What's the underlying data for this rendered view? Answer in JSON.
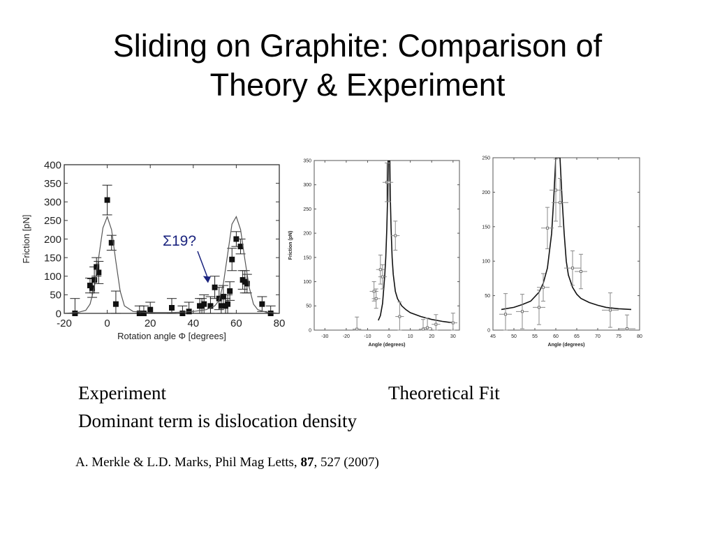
{
  "slide": {
    "title_line1": "Sliding on Graphite: Comparison of",
    "title_line2": "Theory & Experiment",
    "caption_experiment": "Experiment",
    "caption_theory": "Theoretical Fit",
    "caption_dominant": "Dominant term is dislocation density",
    "reference": {
      "authors": "A. Merkle & L.D. Marks, Phil Mag Letts, ",
      "volume": "87",
      "rest": ", 527 (2007)"
    }
  },
  "chart_data": [
    {
      "type": "scatter",
      "title": "",
      "xlabel": "Rotation angle Φ [degrees]",
      "ylabel": "Friction [pN]",
      "xlim": [
        -20,
        80
      ],
      "ylim": [
        0,
        400
      ],
      "xticks": [
        -20,
        0,
        20,
        40,
        60,
        80
      ],
      "yticks": [
        0,
        50,
        100,
        150,
        200,
        250,
        300,
        350,
        400
      ],
      "annotation": "Σ19?",
      "annotation_color": "#1a237e",
      "series": [
        {
          "kind": "points_with_errorbars",
          "x": [
            -15,
            -8,
            -7,
            -6,
            -5,
            -4,
            0,
            2,
            4,
            15,
            17,
            20,
            30,
            35,
            38,
            43,
            44,
            45,
            48,
            50,
            52,
            53,
            54,
            55,
            56,
            57,
            58,
            60,
            62,
            63,
            64,
            65,
            72,
            76
          ],
          "y": [
            0,
            75,
            68,
            90,
            125,
            110,
            305,
            190,
            25,
            0,
            0,
            10,
            15,
            0,
            5,
            20,
            20,
            25,
            20,
            70,
            40,
            20,
            45,
            20,
            25,
            60,
            145,
            200,
            180,
            90,
            85,
            80,
            25,
            0
          ],
          "yerr": [
            40,
            20,
            25,
            35,
            25,
            30,
            40,
            20,
            35,
            20,
            20,
            20,
            25,
            20,
            25,
            20,
            20,
            25,
            25,
            30,
            30,
            20,
            30,
            20,
            25,
            25,
            30,
            20,
            20,
            25,
            30,
            25,
            20,
            20
          ]
        },
        {
          "kind": "fit_curve",
          "x": [
            -20,
            -14,
            -10,
            -8,
            -6,
            -4,
            -2,
            0,
            2,
            4,
            6,
            8,
            12,
            20,
            30,
            40,
            46,
            50,
            52,
            54,
            56,
            58,
            60,
            62,
            64,
            66,
            68,
            70,
            74,
            80
          ],
          "y": [
            0,
            2,
            8,
            25,
            70,
            150,
            230,
            260,
            225,
            140,
            60,
            20,
            5,
            2,
            2,
            5,
            10,
            20,
            35,
            80,
            160,
            240,
            260,
            225,
            145,
            70,
            25,
            10,
            3,
            0
          ]
        }
      ]
    },
    {
      "type": "line",
      "title": "",
      "xlabel": "Angle (degrees)",
      "ylabel": "Friction (pN)",
      "xlim": [
        -35,
        33
      ],
      "ylim": [
        0,
        350
      ],
      "xticks": [
        -30,
        -20,
        -10,
        0,
        10,
        20,
        30
      ],
      "yticks": [
        0,
        50,
        100,
        150,
        200,
        250,
        300,
        350
      ],
      "series": [
        {
          "kind": "fit_curve",
          "x": [
            -5,
            -4,
            -3,
            -2,
            -1.5,
            -1,
            -0.6,
            -0.4,
            0,
            0.4,
            0.6,
            1,
            1.5,
            2,
            3,
            4,
            6,
            8,
            10,
            15,
            20,
            25,
            30
          ],
          "y": [
            20,
            30,
            55,
            110,
            150,
            210,
            280,
            350,
            350,
            350,
            280,
            210,
            150,
            115,
            80,
            65,
            50,
            42,
            36,
            28,
            22,
            18,
            15
          ]
        },
        {
          "kind": "points_with_errorbars",
          "x": [
            -15,
            -7,
            -6,
            -4,
            -3,
            -1,
            0,
            3,
            5,
            16,
            18,
            22,
            30
          ],
          "y": [
            2,
            80,
            65,
            125,
            110,
            305,
            305,
            195,
            28,
            2,
            5,
            12,
            15
          ],
          "yerr": [
            25,
            20,
            20,
            30,
            25,
            40,
            40,
            30,
            30,
            20,
            20,
            20,
            20
          ],
          "xerr": [
            2,
            2,
            2,
            2,
            2,
            2,
            2,
            2,
            2,
            2,
            2,
            2,
            2
          ]
        }
      ]
    },
    {
      "type": "line",
      "title": "",
      "xlabel": "Angle (degrees)",
      "ylabel": "",
      "xlim": [
        45,
        80
      ],
      "ylim": [
        0,
        250
      ],
      "xticks": [
        45,
        50,
        55,
        60,
        65,
        70,
        75,
        80
      ],
      "yticks": [
        0,
        50,
        100,
        150,
        200,
        250
      ],
      "series": [
        {
          "kind": "fit_curve",
          "x": [
            47,
            50,
            52,
            54,
            56,
            57,
            58,
            59,
            59.5,
            60,
            60.5,
            61,
            61.5,
            62,
            62.5,
            63,
            64,
            65,
            66,
            68,
            70,
            72,
            75,
            78
          ],
          "y": [
            30,
            33,
            37,
            42,
            55,
            68,
            90,
            140,
            190,
            250,
            250,
            250,
            190,
            140,
            100,
            80,
            62,
            52,
            46,
            40,
            36,
            33,
            31,
            30
          ],
          "peak_x": 60.8
        },
        {
          "kind": "points_with_errorbars",
          "x": [
            48,
            52,
            56,
            57,
            58,
            60,
            61,
            64,
            66,
            73,
            77
          ],
          "y": [
            23,
            27,
            33,
            62,
            148,
            203,
            185,
            90,
            85,
            29,
            2
          ],
          "yerr": [
            30,
            25,
            25,
            20,
            30,
            45,
            35,
            25,
            25,
            25,
            20
          ],
          "xerr": [
            1.5,
            1.5,
            1.5,
            1.5,
            1.5,
            1.5,
            2,
            2,
            1.5,
            2,
            2
          ]
        }
      ]
    }
  ]
}
